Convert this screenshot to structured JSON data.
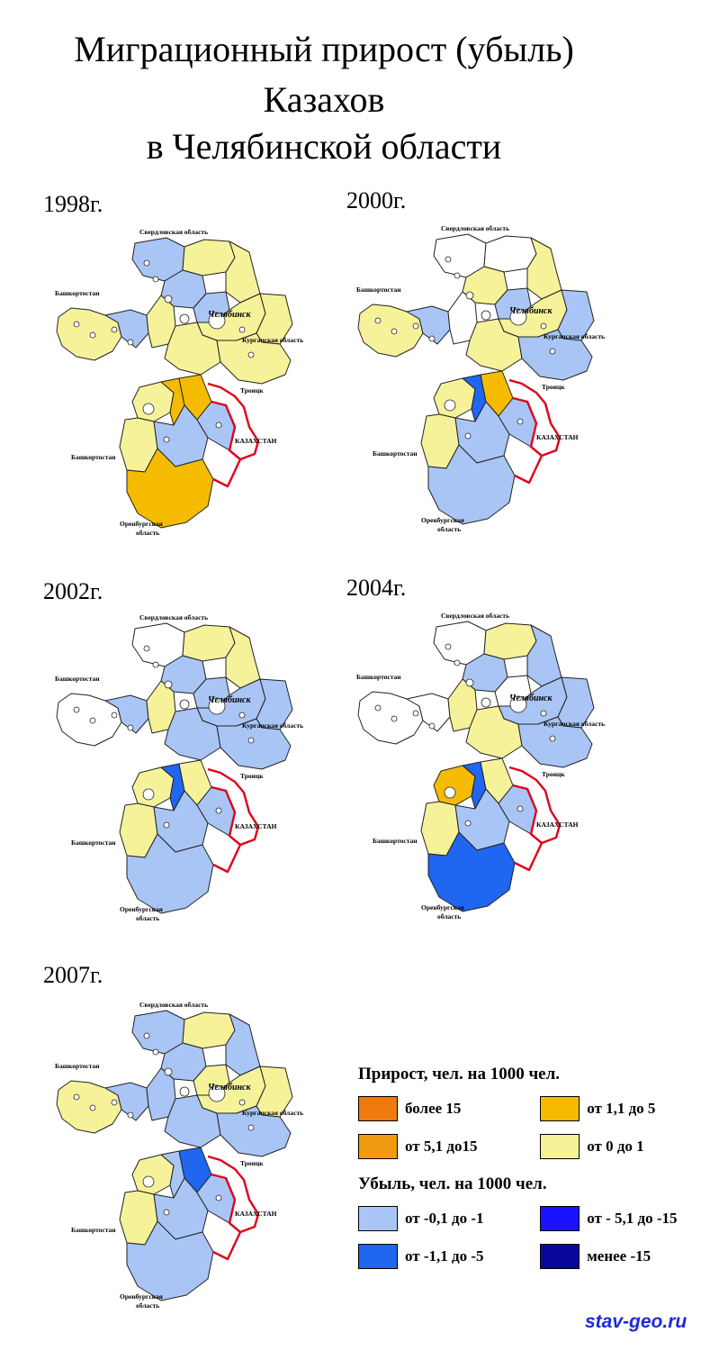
{
  "title": {
    "line1": "Миграционный прирост (убыль)",
    "line2": "Казахов",
    "line3": "в Челябинской области"
  },
  "labels": {
    "sverdlovsk": "Свердловская область",
    "bashkortostan": "Башкортостан",
    "chelyabinsk": "Челябинск",
    "kurgan": "Курганская область",
    "kazakhstan": "КАЗАХСТАН",
    "orenburg_1": "Оренбургская",
    "orenburg_2": "область",
    "troitsk": "Троицк"
  },
  "maps": [
    {
      "year": "1998г.",
      "regions": {
        "north1": "light-blue",
        "north2": "yellow",
        "north3": "light-blue",
        "northeast": "yellow",
        "west_lobe": "yellow",
        "west_inner": "light-blue",
        "central1": "yellow",
        "central2": "light-blue",
        "chelyabinsk": "yellow",
        "kurgan_edge": "yellow",
        "east1": "yellow",
        "east2": "yellow",
        "south_west": "yellow",
        "south_west2": "yellow",
        "south_centerA": "amber",
        "south_centerB": "amber",
        "south_center2": "light-blue",
        "south_east": "light-blue",
        "far_south": "amber"
      }
    },
    {
      "year": "2000г.",
      "regions": {
        "north1": "white",
        "north2": "white",
        "north3": "yellow",
        "northeast": "yellow",
        "west_lobe": "yellow",
        "west_inner": "light-blue",
        "central1": "white",
        "central2": "light-blue",
        "chelyabinsk": "yellow",
        "kurgan_edge": "light-blue",
        "east1": "yellow",
        "east2": "light-blue",
        "south_west": "yellow",
        "south_west2": "yellow",
        "south_centerA": "blue",
        "south_centerB": "amber",
        "south_center2": "light-blue",
        "south_east": "light-blue",
        "far_south": "light-blue"
      }
    },
    {
      "year": "2002г.",
      "regions": {
        "north1": "white",
        "north2": "yellow",
        "north3": "light-blue",
        "northeast": "yellow",
        "west_lobe": "white",
        "west_inner": "light-blue",
        "central1": "yellow",
        "central2": "light-blue",
        "chelyabinsk": "light-blue",
        "kurgan_edge": "light-blue",
        "east1": "light-blue",
        "east2": "light-blue",
        "south_west": "yellow",
        "south_west2": "yellow",
        "south_centerA": "blue",
        "south_centerB": "yellow",
        "south_center2": "light-blue",
        "south_east": "light-blue",
        "far_south": "light-blue"
      }
    },
    {
      "year": "2004г.",
      "regions": {
        "north1": "white",
        "north2": "yellow",
        "north3": "light-blue",
        "northeast": "light-blue",
        "west_lobe": "white",
        "west_inner": "white",
        "central1": "yellow",
        "central2": "white",
        "chelyabinsk": "light-blue",
        "kurgan_edge": "light-blue",
        "east1": "yellow",
        "east2": "light-blue",
        "south_west": "amber",
        "south_west2": "yellow",
        "south_centerA": "blue",
        "south_centerB": "yellow",
        "south_center2": "light-blue",
        "south_east": "light-blue",
        "far_south": "blue"
      }
    },
    {
      "year": "2007г.",
      "regions": {
        "north1": "light-blue",
        "north2": "yellow",
        "north3": "light-blue",
        "northeast": "light-blue",
        "west_lobe": "yellow",
        "west_inner": "light-blue",
        "central1": "light-blue",
        "central2": "yellow",
        "chelyabinsk": "yellow",
        "kurgan_edge": "yellow",
        "east1": "light-blue",
        "east2": "light-blue",
        "south_west": "yellow",
        "south_west2": "yellow",
        "south_centerA": "light-blue",
        "south_centerB": "blue",
        "south_center2": "light-blue",
        "south_east": "light-blue",
        "far_south": "light-blue"
      }
    }
  ],
  "legend": {
    "growth_title": "Прирост, чел. на 1000 чел.",
    "decline_title": "Убыль, чел. на 1000 чел.",
    "items": {
      "g1": {
        "label": "более 15",
        "color": "#f07a10"
      },
      "g2": {
        "label": "от 1,1 до 5",
        "color": "#f5bb00"
      },
      "g3": {
        "label": "от 5,1 до15",
        "color": "#f19a10"
      },
      "g4": {
        "label": "от 0 до 1",
        "color": "#f6f29a"
      },
      "d1": {
        "label": "от -0,1 до -1",
        "color": "#a9c5f5"
      },
      "d2": {
        "label": "от - 5,1 до -15",
        "color": "#1b12ff"
      },
      "d3": {
        "label": "от -1,1 до -5",
        "color": "#1f66f0"
      },
      "d4": {
        "label": "менее -15",
        "color": "#07079c"
      }
    }
  },
  "palette": {
    "white": "#ffffff",
    "yellow": "#f6f29a",
    "light-blue": "#a9c5f5",
    "amber": "#f5bb00",
    "blue": "#1f66f0",
    "border": "#e0001a"
  },
  "watermark": "stav-geo.ru"
}
